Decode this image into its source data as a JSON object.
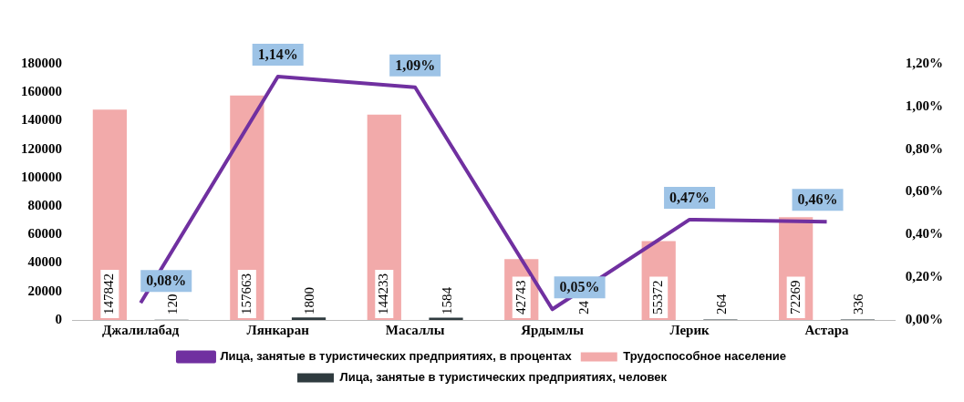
{
  "chart_data": {
    "type": "bar",
    "categories": [
      "Джалилабад",
      "Лянкаран",
      "Масаллы",
      "Ярдымлы",
      "Лерик",
      "Астара"
    ],
    "series": [
      {
        "name": "Трудоспособное население",
        "color": "#f2aaaa",
        "values": [
          147842,
          157663,
          144233,
          42743,
          55372,
          72269
        ],
        "value_labels": [
          "147842",
          "157663",
          "144233",
          "42743",
          "55372",
          "72269"
        ]
      },
      {
        "name": "Лица, занятые в туристических предприятиях, человек",
        "color": "#2f3b3f",
        "values": [
          120,
          1800,
          1584,
          24,
          264,
          336
        ],
        "value_labels": [
          "120",
          "1800",
          "1584",
          "24",
          "264",
          "336"
        ]
      },
      {
        "name": "Лица, занятые в туристических предприятиях, в процентах",
        "type": "line",
        "axis": "y2",
        "color": "#7030a0",
        "values": [
          0.08,
          1.14,
          1.09,
          0.05,
          0.47,
          0.46
        ],
        "value_labels": [
          "0,08%",
          "1,14%",
          "1,09%",
          "0,05%",
          "0,47%",
          "0,46%"
        ]
      }
    ],
    "ylim": [
      0,
      180000
    ],
    "yticks": [
      0,
      20000,
      40000,
      60000,
      80000,
      100000,
      120000,
      140000,
      160000,
      180000
    ],
    "y2lim": [
      0,
      1.2
    ],
    "y2ticks": [
      {
        "value": 0,
        "label": "0,00%"
      },
      {
        "value": 0.2,
        "label": "0,20%"
      },
      {
        "value": 0.4,
        "label": "0,40%"
      },
      {
        "value": 0.6,
        "label": "0,60%"
      },
      {
        "value": 0.8,
        "label": "0,80%"
      },
      {
        "value": 1,
        "label": "1,00%"
      },
      {
        "value": 1.2,
        "label": "1,20%"
      }
    ],
    "grid": false,
    "legend": "bottom",
    "marker": "none",
    "line_style": "solid"
  }
}
